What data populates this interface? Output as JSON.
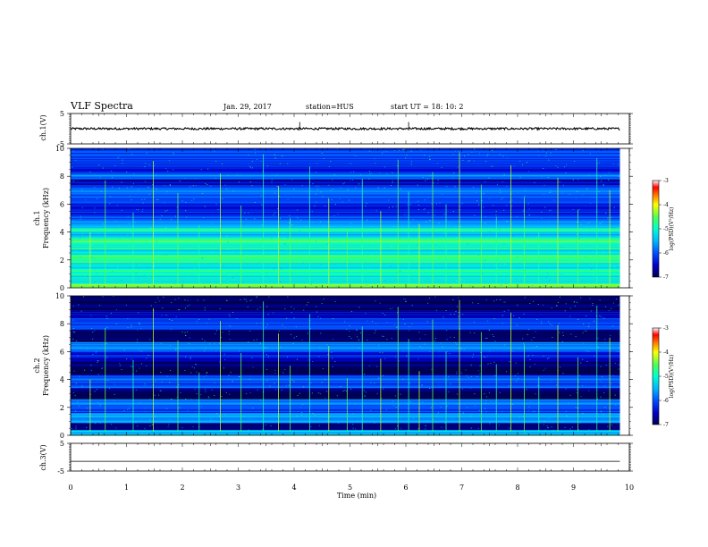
{
  "header": {
    "title": "VLF Spectra",
    "date": "Jan. 29, 2017",
    "station": "station=HUS",
    "start": "start  UT =   18: 10: 2"
  },
  "chart_data": [
    {
      "id": "ch1-waveform",
      "type": "line",
      "ylabel": "ch.1(V)",
      "ylim": [
        -5,
        5
      ],
      "yticks": [
        "5",
        "-5"
      ],
      "baseline": 0,
      "note_level": "noisy trace near 0 V across whole record"
    },
    {
      "id": "ch1-spectrogram",
      "type": "heatmap",
      "ylabel": "ch.1\nFrequency (kHz)",
      "ylabel_top": "ch.1",
      "ylabel_bottom": "Frequency (kHz)",
      "ylim": [
        0,
        10
      ],
      "yticks": [
        "0",
        "2",
        "4",
        "6",
        "8",
        "10"
      ],
      "xlim": [
        0,
        10
      ],
      "colorbar": {
        "label": "log(PSD)(V²/Hz)",
        "range": [
          -7,
          -3
        ],
        "ticks": [
          "-3",
          "-4",
          "-5",
          "-6",
          "-7"
        ]
      },
      "bands_kHz": [
        {
          "f0": 0.0,
          "f1": 0.3,
          "level": -4.3
        },
        {
          "f0": 0.3,
          "f1": 0.9,
          "level": -5.1
        },
        {
          "f0": 0.9,
          "f1": 1.4,
          "level": -4.8
        },
        {
          "f0": 1.4,
          "f1": 1.8,
          "level": -5.2
        },
        {
          "f0": 1.8,
          "f1": 2.4,
          "level": -4.7
        },
        {
          "f0": 2.4,
          "f1": 2.8,
          "level": -5.3
        },
        {
          "f0": 2.8,
          "f1": 3.2,
          "level": -4.9
        },
        {
          "f0": 3.2,
          "f1": 3.6,
          "level": -4.6
        },
        {
          "f0": 3.6,
          "f1": 4.0,
          "level": -5.4
        },
        {
          "f0": 4.0,
          "f1": 4.3,
          "level": -4.9
        },
        {
          "f0": 4.3,
          "f1": 4.8,
          "level": -5.6
        },
        {
          "f0": 4.8,
          "f1": 5.3,
          "level": -6.0
        },
        {
          "f0": 5.3,
          "f1": 6.4,
          "level": -6.2
        },
        {
          "f0": 6.4,
          "f1": 7.4,
          "level": -5.9
        },
        {
          "f0": 7.4,
          "f1": 7.8,
          "level": -6.6
        },
        {
          "f0": 7.8,
          "f1": 8.3,
          "level": -5.8
        },
        {
          "f0": 8.3,
          "f1": 9.0,
          "level": -6.3
        },
        {
          "f0": 9.0,
          "f1": 10.0,
          "level": -6.1
        }
      ]
    },
    {
      "id": "ch2-spectrogram",
      "type": "heatmap",
      "ylabel_top": "ch.2",
      "ylabel_bottom": "Frequency (kHz)",
      "ylim": [
        0,
        10
      ],
      "yticks": [
        "0",
        "2",
        "4",
        "6",
        "8",
        "10"
      ],
      "xlim": [
        0,
        10
      ],
      "colorbar": {
        "label": "log(PSD)(V²/Hz)",
        "range": [
          -7,
          -3
        ],
        "ticks": [
          "-3",
          "-4",
          "-5",
          "-6",
          "-7"
        ]
      },
      "bands_kHz": [
        {
          "f0": 0.0,
          "f1": 0.4,
          "level": -5.4
        },
        {
          "f0": 0.4,
          "f1": 0.9,
          "level": -6.9
        },
        {
          "f0": 0.9,
          "f1": 1.6,
          "level": -5.5
        },
        {
          "f0": 1.6,
          "f1": 2.1,
          "level": -6.1
        },
        {
          "f0": 2.1,
          "f1": 2.6,
          "level": -5.8
        },
        {
          "f0": 2.6,
          "f1": 3.4,
          "level": -7.0
        },
        {
          "f0": 3.4,
          "f1": 4.3,
          "level": -6.0
        },
        {
          "f0": 4.3,
          "f1": 5.3,
          "level": -7.0
        },
        {
          "f0": 5.3,
          "f1": 6.0,
          "level": -6.4
        },
        {
          "f0": 6.0,
          "f1": 6.7,
          "level": -5.8
        },
        {
          "f0": 6.7,
          "f1": 7.6,
          "level": -7.0
        },
        {
          "f0": 7.6,
          "f1": 8.4,
          "level": -6.0
        },
        {
          "f0": 8.4,
          "f1": 9.0,
          "level": -6.6
        },
        {
          "f0": 9.0,
          "f1": 10.0,
          "level": -7.0
        }
      ]
    },
    {
      "id": "ch3-waveform",
      "type": "line",
      "ylabel": "ch.3(V)",
      "ylim": [
        -5,
        5
      ],
      "yticks": [
        "5",
        "-5"
      ],
      "baseline": -1.5,
      "note_level": "flat line"
    }
  ],
  "x_axis": {
    "label": "Time (min)",
    "range": [
      0,
      10
    ],
    "ticks": [
      "0",
      "1",
      "2",
      "3",
      "4",
      "5",
      "6",
      "7",
      "8",
      "9",
      "10"
    ],
    "data_end": 9.83
  },
  "impulses_min": [
    0.35,
    0.62,
    1.12,
    1.48,
    1.92,
    2.3,
    2.68,
    3.05,
    3.45,
    3.72,
    3.93,
    4.28,
    4.62,
    4.95,
    5.22,
    5.55,
    5.86,
    6.05,
    6.24,
    6.48,
    6.72,
    6.96,
    7.35,
    7.62,
    7.88,
    8.12,
    8.38,
    8.72,
    9.08,
    9.42,
    9.65
  ],
  "colors": {
    "background": "#ffffff",
    "axis": "#000000",
    "colormap": [
      "#000050",
      "#0000c8",
      "#0050ff",
      "#00b4ff",
      "#00ffd2",
      "#50ff50",
      "#ffff00",
      "#ff7800",
      "#ff0000",
      "#ffffff"
    ]
  }
}
